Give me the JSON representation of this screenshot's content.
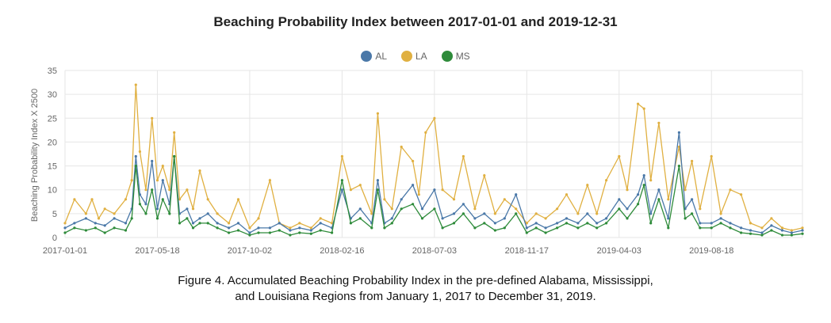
{
  "chart_data": {
    "type": "line",
    "title": "Beaching Probability Index between 2017-01-01 and 2019-12-31",
    "ylabel": "Beaching Probability Index X 2500",
    "xlabel": "",
    "ylim": [
      0,
      35
    ],
    "yticks": [
      "0",
      "5",
      "10",
      "15",
      "20",
      "25",
      "30",
      "35"
    ],
    "xticks": [
      "2017-01-01",
      "2017-05-18",
      "2017-10-02",
      "2018-02-16",
      "2018-07-03",
      "2018-11-17",
      "2019-04-03",
      "2019-08-18"
    ],
    "x_start": "2017-01-01",
    "x_end": "2019-12-31",
    "grid": true,
    "legend_position": "top-center",
    "series": [
      {
        "name": "AL",
        "color": "#4a78a8",
        "points": [
          [
            "2017-01-01",
            2
          ],
          [
            "2017-01-15",
            3
          ],
          [
            "2017-02-01",
            4
          ],
          [
            "2017-02-15",
            3
          ],
          [
            "2017-03-01",
            2.5
          ],
          [
            "2017-03-15",
            4
          ],
          [
            "2017-04-01",
            3
          ],
          [
            "2017-04-10",
            6
          ],
          [
            "2017-04-16",
            17
          ],
          [
            "2017-04-22",
            9
          ],
          [
            "2017-05-01",
            7
          ],
          [
            "2017-05-10",
            16
          ],
          [
            "2017-05-18",
            6
          ],
          [
            "2017-05-26",
            12
          ],
          [
            "2017-06-05",
            7
          ],
          [
            "2017-06-12",
            17
          ],
          [
            "2017-06-20",
            5
          ],
          [
            "2017-07-01",
            6
          ],
          [
            "2017-07-10",
            3
          ],
          [
            "2017-07-20",
            4
          ],
          [
            "2017-08-01",
            5
          ],
          [
            "2017-08-15",
            3
          ],
          [
            "2017-09-01",
            2
          ],
          [
            "2017-09-15",
            3
          ],
          [
            "2017-10-02",
            1
          ],
          [
            "2017-10-15",
            2
          ],
          [
            "2017-11-01",
            2
          ],
          [
            "2017-11-15",
            3
          ],
          [
            "2017-12-01",
            1.5
          ],
          [
            "2017-12-15",
            2
          ],
          [
            "2018-01-01",
            1.5
          ],
          [
            "2018-01-15",
            3
          ],
          [
            "2018-02-01",
            2
          ],
          [
            "2018-02-16",
            10
          ],
          [
            "2018-03-01",
            4
          ],
          [
            "2018-03-15",
            6
          ],
          [
            "2018-04-01",
            3
          ],
          [
            "2018-04-10",
            12
          ],
          [
            "2018-04-20",
            3
          ],
          [
            "2018-05-01",
            4
          ],
          [
            "2018-05-15",
            8
          ],
          [
            "2018-06-01",
            11
          ],
          [
            "2018-06-15",
            6
          ],
          [
            "2018-07-03",
            10
          ],
          [
            "2018-07-15",
            4
          ],
          [
            "2018-08-01",
            5
          ],
          [
            "2018-08-15",
            7
          ],
          [
            "2018-09-01",
            4
          ],
          [
            "2018-09-15",
            5
          ],
          [
            "2018-10-01",
            3
          ],
          [
            "2018-10-15",
            4
          ],
          [
            "2018-11-01",
            9
          ],
          [
            "2018-11-17",
            2
          ],
          [
            "2018-12-01",
            3
          ],
          [
            "2018-12-15",
            2
          ],
          [
            "2019-01-01",
            3
          ],
          [
            "2019-01-15",
            4
          ],
          [
            "2019-02-01",
            3
          ],
          [
            "2019-02-15",
            5
          ],
          [
            "2019-03-01",
            3
          ],
          [
            "2019-03-15",
            4
          ],
          [
            "2019-04-03",
            8
          ],
          [
            "2019-04-15",
            6
          ],
          [
            "2019-05-01",
            9
          ],
          [
            "2019-05-10",
            13
          ],
          [
            "2019-05-20",
            5
          ],
          [
            "2019-06-01",
            10
          ],
          [
            "2019-06-15",
            4
          ],
          [
            "2019-07-01",
            22
          ],
          [
            "2019-07-10",
            6
          ],
          [
            "2019-07-20",
            8
          ],
          [
            "2019-08-01",
            3
          ],
          [
            "2019-08-18",
            3
          ],
          [
            "2019-09-01",
            4
          ],
          [
            "2019-09-15",
            3
          ],
          [
            "2019-10-01",
            2
          ],
          [
            "2019-10-15",
            1.5
          ],
          [
            "2019-11-01",
            1
          ],
          [
            "2019-11-15",
            2.5
          ],
          [
            "2019-12-01",
            1.5
          ],
          [
            "2019-12-15",
            1
          ],
          [
            "2019-12-31",
            1.5
          ]
        ]
      },
      {
        "name": "LA",
        "color": "#e0b041",
        "points": [
          [
            "2017-01-01",
            3
          ],
          [
            "2017-01-15",
            8
          ],
          [
            "2017-02-01",
            5
          ],
          [
            "2017-02-10",
            8
          ],
          [
            "2017-02-20",
            4
          ],
          [
            "2017-03-01",
            6
          ],
          [
            "2017-03-15",
            5
          ],
          [
            "2017-04-01",
            8
          ],
          [
            "2017-04-10",
            12
          ],
          [
            "2017-04-16",
            32
          ],
          [
            "2017-04-22",
            18
          ],
          [
            "2017-05-01",
            10
          ],
          [
            "2017-05-10",
            25
          ],
          [
            "2017-05-18",
            12
          ],
          [
            "2017-05-26",
            15
          ],
          [
            "2017-06-05",
            10
          ],
          [
            "2017-06-12",
            22
          ],
          [
            "2017-06-20",
            8
          ],
          [
            "2017-07-01",
            10
          ],
          [
            "2017-07-10",
            6
          ],
          [
            "2017-07-20",
            14
          ],
          [
            "2017-08-01",
            8
          ],
          [
            "2017-08-15",
            5
          ],
          [
            "2017-09-01",
            3
          ],
          [
            "2017-09-15",
            8
          ],
          [
            "2017-10-02",
            2
          ],
          [
            "2017-10-15",
            4
          ],
          [
            "2017-11-01",
            12
          ],
          [
            "2017-11-15",
            3
          ],
          [
            "2017-12-01",
            2
          ],
          [
            "2017-12-15",
            3
          ],
          [
            "2018-01-01",
            2
          ],
          [
            "2018-01-15",
            4
          ],
          [
            "2018-02-01",
            3
          ],
          [
            "2018-02-16",
            17
          ],
          [
            "2018-03-01",
            10
          ],
          [
            "2018-03-15",
            11
          ],
          [
            "2018-04-01",
            5
          ],
          [
            "2018-04-10",
            26
          ],
          [
            "2018-04-20",
            8
          ],
          [
            "2018-05-01",
            6
          ],
          [
            "2018-05-15",
            19
          ],
          [
            "2018-06-01",
            16
          ],
          [
            "2018-06-10",
            9
          ],
          [
            "2018-06-20",
            22
          ],
          [
            "2018-07-03",
            25
          ],
          [
            "2018-07-15",
            10
          ],
          [
            "2018-08-01",
            8
          ],
          [
            "2018-08-15",
            17
          ],
          [
            "2018-09-01",
            6
          ],
          [
            "2018-09-15",
            13
          ],
          [
            "2018-10-01",
            5
          ],
          [
            "2018-10-15",
            8
          ],
          [
            "2018-11-01",
            6
          ],
          [
            "2018-11-17",
            3
          ],
          [
            "2018-12-01",
            5
          ],
          [
            "2018-12-15",
            4
          ],
          [
            "2019-01-01",
            6
          ],
          [
            "2019-01-15",
            9
          ],
          [
            "2019-02-01",
            5
          ],
          [
            "2019-02-15",
            11
          ],
          [
            "2019-03-01",
            5
          ],
          [
            "2019-03-15",
            12
          ],
          [
            "2019-04-03",
            17
          ],
          [
            "2019-04-15",
            10
          ],
          [
            "2019-05-01",
            28
          ],
          [
            "2019-05-10",
            27
          ],
          [
            "2019-05-20",
            12
          ],
          [
            "2019-06-01",
            24
          ],
          [
            "2019-06-15",
            8
          ],
          [
            "2019-07-01",
            19
          ],
          [
            "2019-07-10",
            10
          ],
          [
            "2019-07-20",
            16
          ],
          [
            "2019-08-01",
            6
          ],
          [
            "2019-08-18",
            17
          ],
          [
            "2019-09-01",
            5
          ],
          [
            "2019-09-15",
            10
          ],
          [
            "2019-10-01",
            9
          ],
          [
            "2019-10-15",
            3
          ],
          [
            "2019-11-01",
            2
          ],
          [
            "2019-11-15",
            4
          ],
          [
            "2019-12-01",
            2
          ],
          [
            "2019-12-15",
            1.5
          ],
          [
            "2019-12-31",
            2
          ]
        ]
      },
      {
        "name": "MS",
        "color": "#2e8b3a",
        "points": [
          [
            "2017-01-01",
            1
          ],
          [
            "2017-01-15",
            2
          ],
          [
            "2017-02-01",
            1.5
          ],
          [
            "2017-02-15",
            2
          ],
          [
            "2017-03-01",
            1
          ],
          [
            "2017-03-15",
            2
          ],
          [
            "2017-04-01",
            1.5
          ],
          [
            "2017-04-10",
            4
          ],
          [
            "2017-04-16",
            15
          ],
          [
            "2017-04-22",
            7
          ],
          [
            "2017-05-01",
            5
          ],
          [
            "2017-05-10",
            10
          ],
          [
            "2017-05-18",
            4
          ],
          [
            "2017-05-26",
            8
          ],
          [
            "2017-06-05",
            5
          ],
          [
            "2017-06-12",
            17
          ],
          [
            "2017-06-20",
            3
          ],
          [
            "2017-07-01",
            4
          ],
          [
            "2017-07-10",
            2
          ],
          [
            "2017-07-20",
            3
          ],
          [
            "2017-08-01",
            3
          ],
          [
            "2017-08-15",
            2
          ],
          [
            "2017-09-01",
            1
          ],
          [
            "2017-09-15",
            1.5
          ],
          [
            "2017-10-02",
            0.5
          ],
          [
            "2017-10-15",
            1
          ],
          [
            "2017-11-01",
            1
          ],
          [
            "2017-11-15",
            1.5
          ],
          [
            "2017-12-01",
            0.5
          ],
          [
            "2017-12-15",
            1
          ],
          [
            "2018-01-01",
            0.8
          ],
          [
            "2018-01-15",
            1.5
          ],
          [
            "2018-02-01",
            1
          ],
          [
            "2018-02-16",
            12
          ],
          [
            "2018-03-01",
            3
          ],
          [
            "2018-03-15",
            4
          ],
          [
            "2018-04-01",
            2
          ],
          [
            "2018-04-10",
            10
          ],
          [
            "2018-04-20",
            2
          ],
          [
            "2018-05-01",
            3
          ],
          [
            "2018-05-15",
            6
          ],
          [
            "2018-06-01",
            7
          ],
          [
            "2018-06-15",
            4
          ],
          [
            "2018-07-03",
            6
          ],
          [
            "2018-07-15",
            2
          ],
          [
            "2018-08-01",
            3
          ],
          [
            "2018-08-15",
            5
          ],
          [
            "2018-09-01",
            2
          ],
          [
            "2018-09-15",
            3
          ],
          [
            "2018-10-01",
            1.5
          ],
          [
            "2018-10-15",
            2
          ],
          [
            "2018-11-01",
            5
          ],
          [
            "2018-11-17",
            1
          ],
          [
            "2018-12-01",
            2
          ],
          [
            "2018-12-15",
            1
          ],
          [
            "2019-01-01",
            2
          ],
          [
            "2019-01-15",
            3
          ],
          [
            "2019-02-01",
            2
          ],
          [
            "2019-02-15",
            3
          ],
          [
            "2019-03-01",
            2
          ],
          [
            "2019-03-15",
            3
          ],
          [
            "2019-04-03",
            6
          ],
          [
            "2019-04-15",
            4
          ],
          [
            "2019-05-01",
            7
          ],
          [
            "2019-05-10",
            11
          ],
          [
            "2019-05-20",
            3
          ],
          [
            "2019-06-01",
            8
          ],
          [
            "2019-06-15",
            2
          ],
          [
            "2019-07-01",
            15
          ],
          [
            "2019-07-10",
            4
          ],
          [
            "2019-07-20",
            5
          ],
          [
            "2019-08-01",
            2
          ],
          [
            "2019-08-18",
            2
          ],
          [
            "2019-09-01",
            3
          ],
          [
            "2019-09-15",
            2
          ],
          [
            "2019-10-01",
            1
          ],
          [
            "2019-10-15",
            0.8
          ],
          [
            "2019-11-01",
            0.5
          ],
          [
            "2019-11-15",
            1.5
          ],
          [
            "2019-12-01",
            0.5
          ],
          [
            "2019-12-15",
            0.5
          ],
          [
            "2019-12-31",
            0.8
          ]
        ]
      }
    ]
  },
  "caption": {
    "line1": "Figure 4. Accumulated Beaching Probability Index in the pre-defined Alabama, Mississippi,",
    "line2": "and Louisiana Regions from January 1, 2017 to December 31, 2019."
  }
}
